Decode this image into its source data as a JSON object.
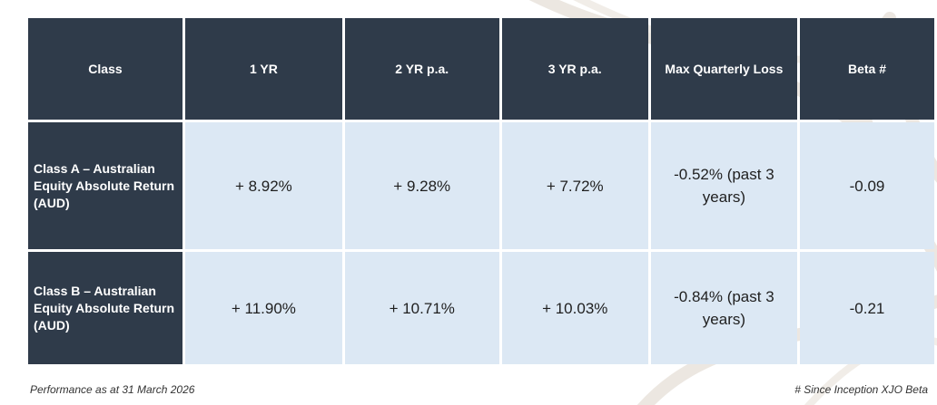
{
  "table": {
    "headers": [
      "Class",
      "1 YR",
      "2 YR p.a.",
      "3 YR p.a.",
      "Max Quarterly Loss",
      "Beta #"
    ],
    "rows": [
      {
        "label": "Class A – Australian Equity Absolute Return (AUD)",
        "one_yr": "+ 8.92%",
        "two_yr": "+ 9.28%",
        "three_yr": "+ 7.72%",
        "max_quarterly_loss": "-0.52% (past 3 years)",
        "beta": "-0.09"
      },
      {
        "label": "Class B – Australian Equity Absolute Return (AUD)",
        "one_yr": "+ 11.90%",
        "two_yr": "+ 10.71%",
        "three_yr": "+ 10.03%",
        "max_quarterly_loss": "-0.84% (past 3 years)",
        "beta": "-0.21"
      }
    ]
  },
  "footnotes": {
    "performance_date": "Performance as at 31 March 2026",
    "beta_note": "# Since Inception XJO Beta"
  },
  "colors": {
    "header_bg": "#2f3b4a",
    "cell_bg": "#dce8f4",
    "header_text": "#ffffff",
    "cell_text": "#1f1f1f"
  }
}
